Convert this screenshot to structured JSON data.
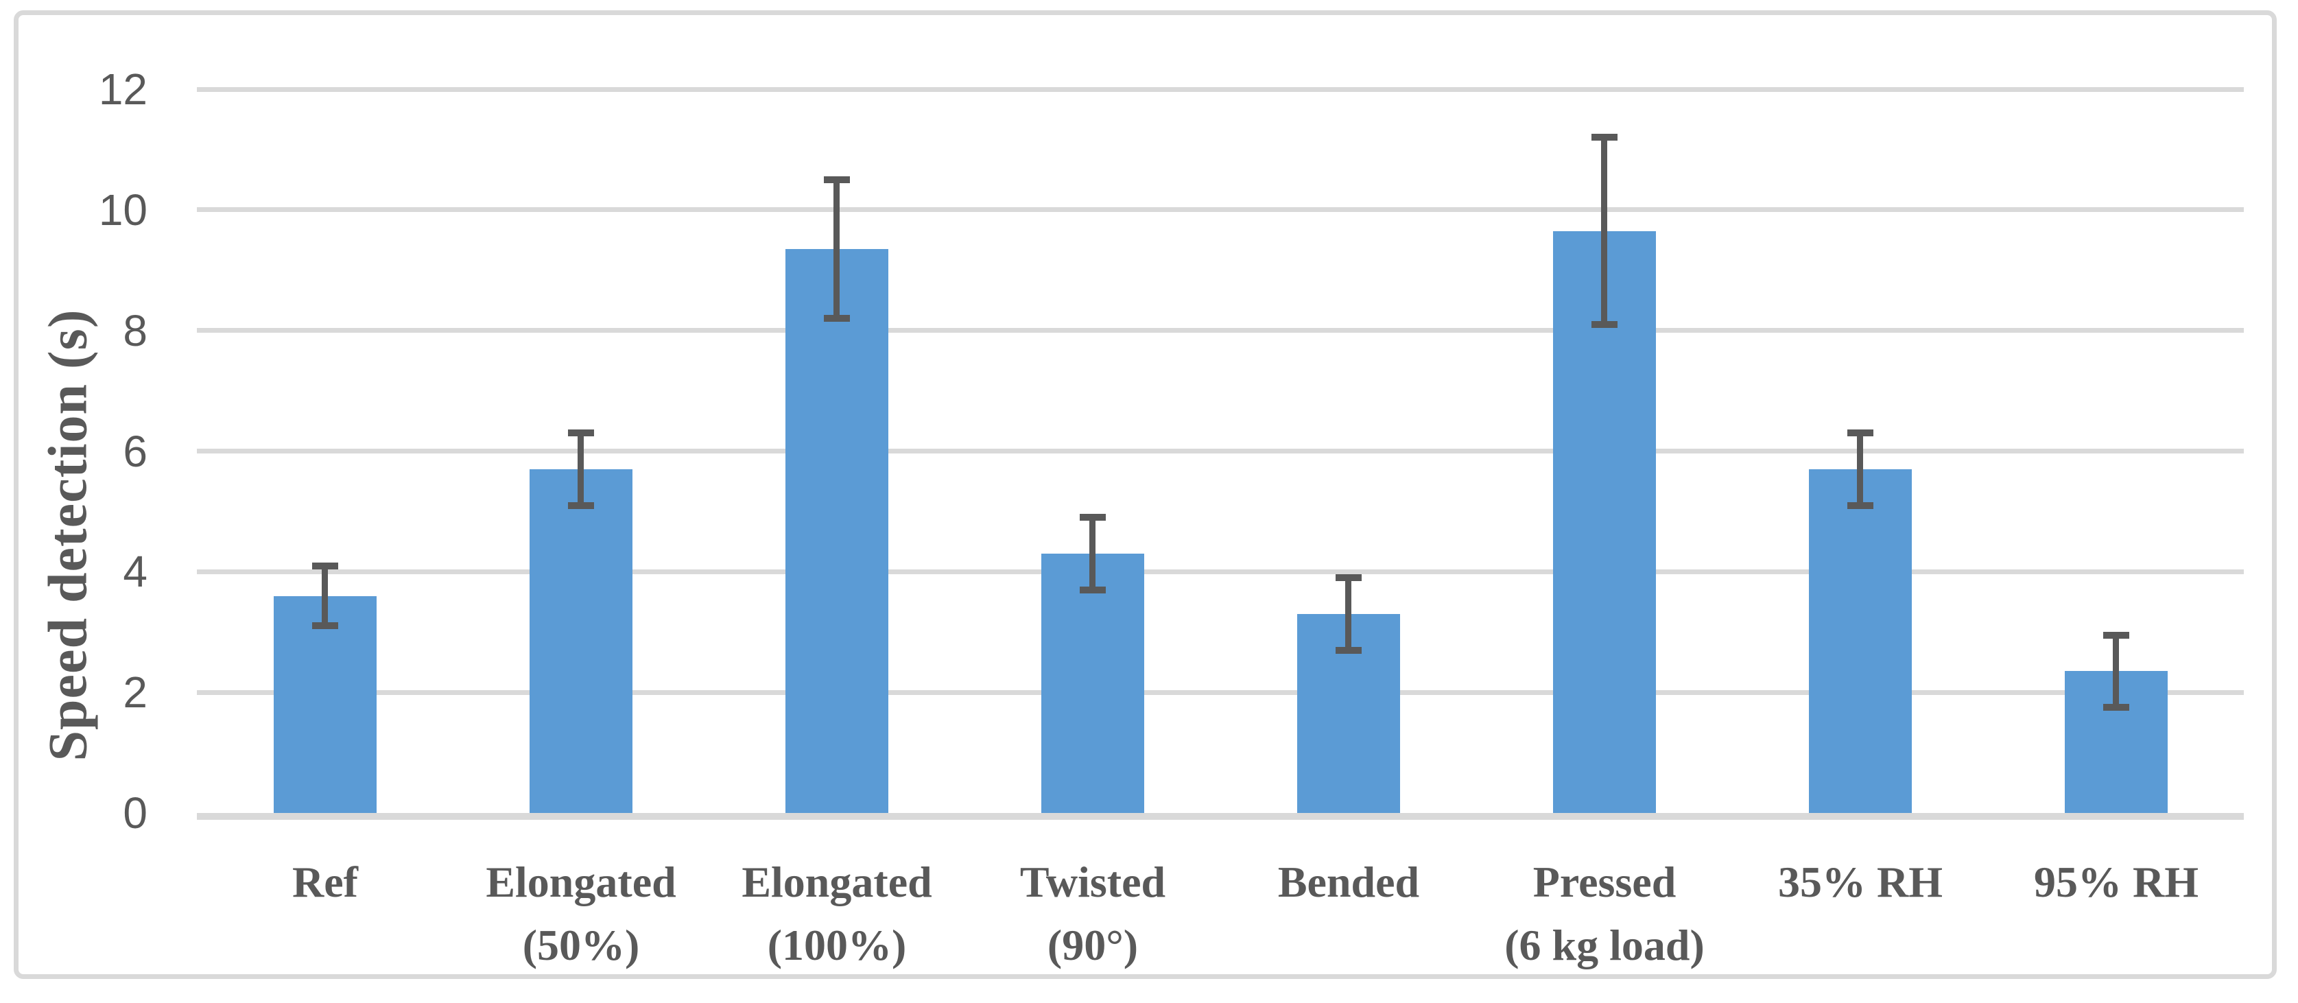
{
  "figure": {
    "background": "#ffffff",
    "border_color": "#d9d9d9"
  },
  "chart_data": {
    "type": "bar",
    "title": "",
    "xlabel": "",
    "ylabel": "Speed detection (s)",
    "categories": [
      "Ref",
      "Elongated (50%)",
      "Elongated (100%)",
      "Twisted (90°)",
      "Bended",
      "Pressed (6 kg load)",
      "35% RH",
      "95% RH"
    ],
    "category_lines": [
      [
        "Ref"
      ],
      [
        "Elongated",
        "(50%)"
      ],
      [
        "Elongated",
        "(100%)"
      ],
      [
        "Twisted",
        "(90°)"
      ],
      [
        "Bended"
      ],
      [
        "Pressed",
        "(6 kg load)"
      ],
      [
        "35% RH"
      ],
      [
        "95% RH"
      ]
    ],
    "values": [
      3.6,
      5.7,
      9.35,
      4.3,
      3.3,
      9.65,
      5.7,
      2.35
    ],
    "errors": [
      0.5,
      0.6,
      1.15,
      0.6,
      0.6,
      1.55,
      0.6,
      0.6
    ],
    "yticks": [
      0,
      2,
      4,
      6,
      8,
      10,
      12
    ],
    "ylim": [
      0,
      12
    ],
    "grid": "horizontal",
    "legend_position": "none",
    "colors": {
      "bar": "#5b9bd5",
      "error_bar": "#595959",
      "gridline": "#d9d9d9",
      "tick_text": "#595959",
      "label_text": "#595959",
      "figure_border": "#d9d9d9"
    }
  }
}
